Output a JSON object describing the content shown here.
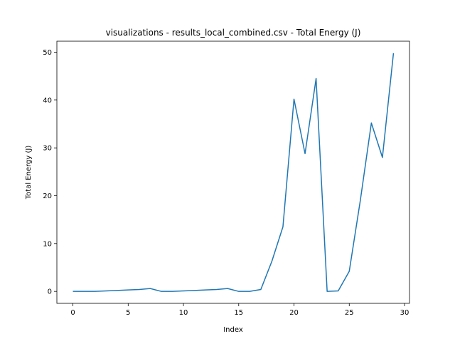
{
  "chart_data": {
    "type": "line",
    "title": "visualizations - results_local_combined.csv - Total Energy (J)",
    "xlabel": "Index",
    "ylabel": "Total Energy (J)",
    "xlim": [
      -1.45,
      30.45
    ],
    "ylim": [
      -2.5,
      52.3
    ],
    "xticks": [
      0,
      5,
      10,
      15,
      20,
      25,
      30
    ],
    "yticks": [
      0,
      10,
      20,
      30,
      40,
      50
    ],
    "grid": false,
    "line_color": "#1f77b4",
    "series": [
      {
        "x": [
          0,
          1,
          2,
          3,
          4,
          5,
          6,
          7,
          8,
          9,
          10,
          11,
          12,
          13,
          14,
          15,
          16,
          17,
          18,
          19,
          20,
          21,
          22,
          23,
          24,
          25,
          26,
          27,
          28,
          29
        ],
        "y": [
          0.0,
          0.0,
          0.0,
          0.1,
          0.2,
          0.3,
          0.4,
          0.6,
          0.0,
          0.0,
          0.1,
          0.2,
          0.3,
          0.4,
          0.6,
          0.0,
          0.0,
          0.4,
          6.3,
          13.5,
          40.2,
          28.8,
          44.5,
          0.0,
          0.1,
          4.2,
          19.0,
          35.2,
          28.0,
          49.8
        ]
      }
    ]
  }
}
